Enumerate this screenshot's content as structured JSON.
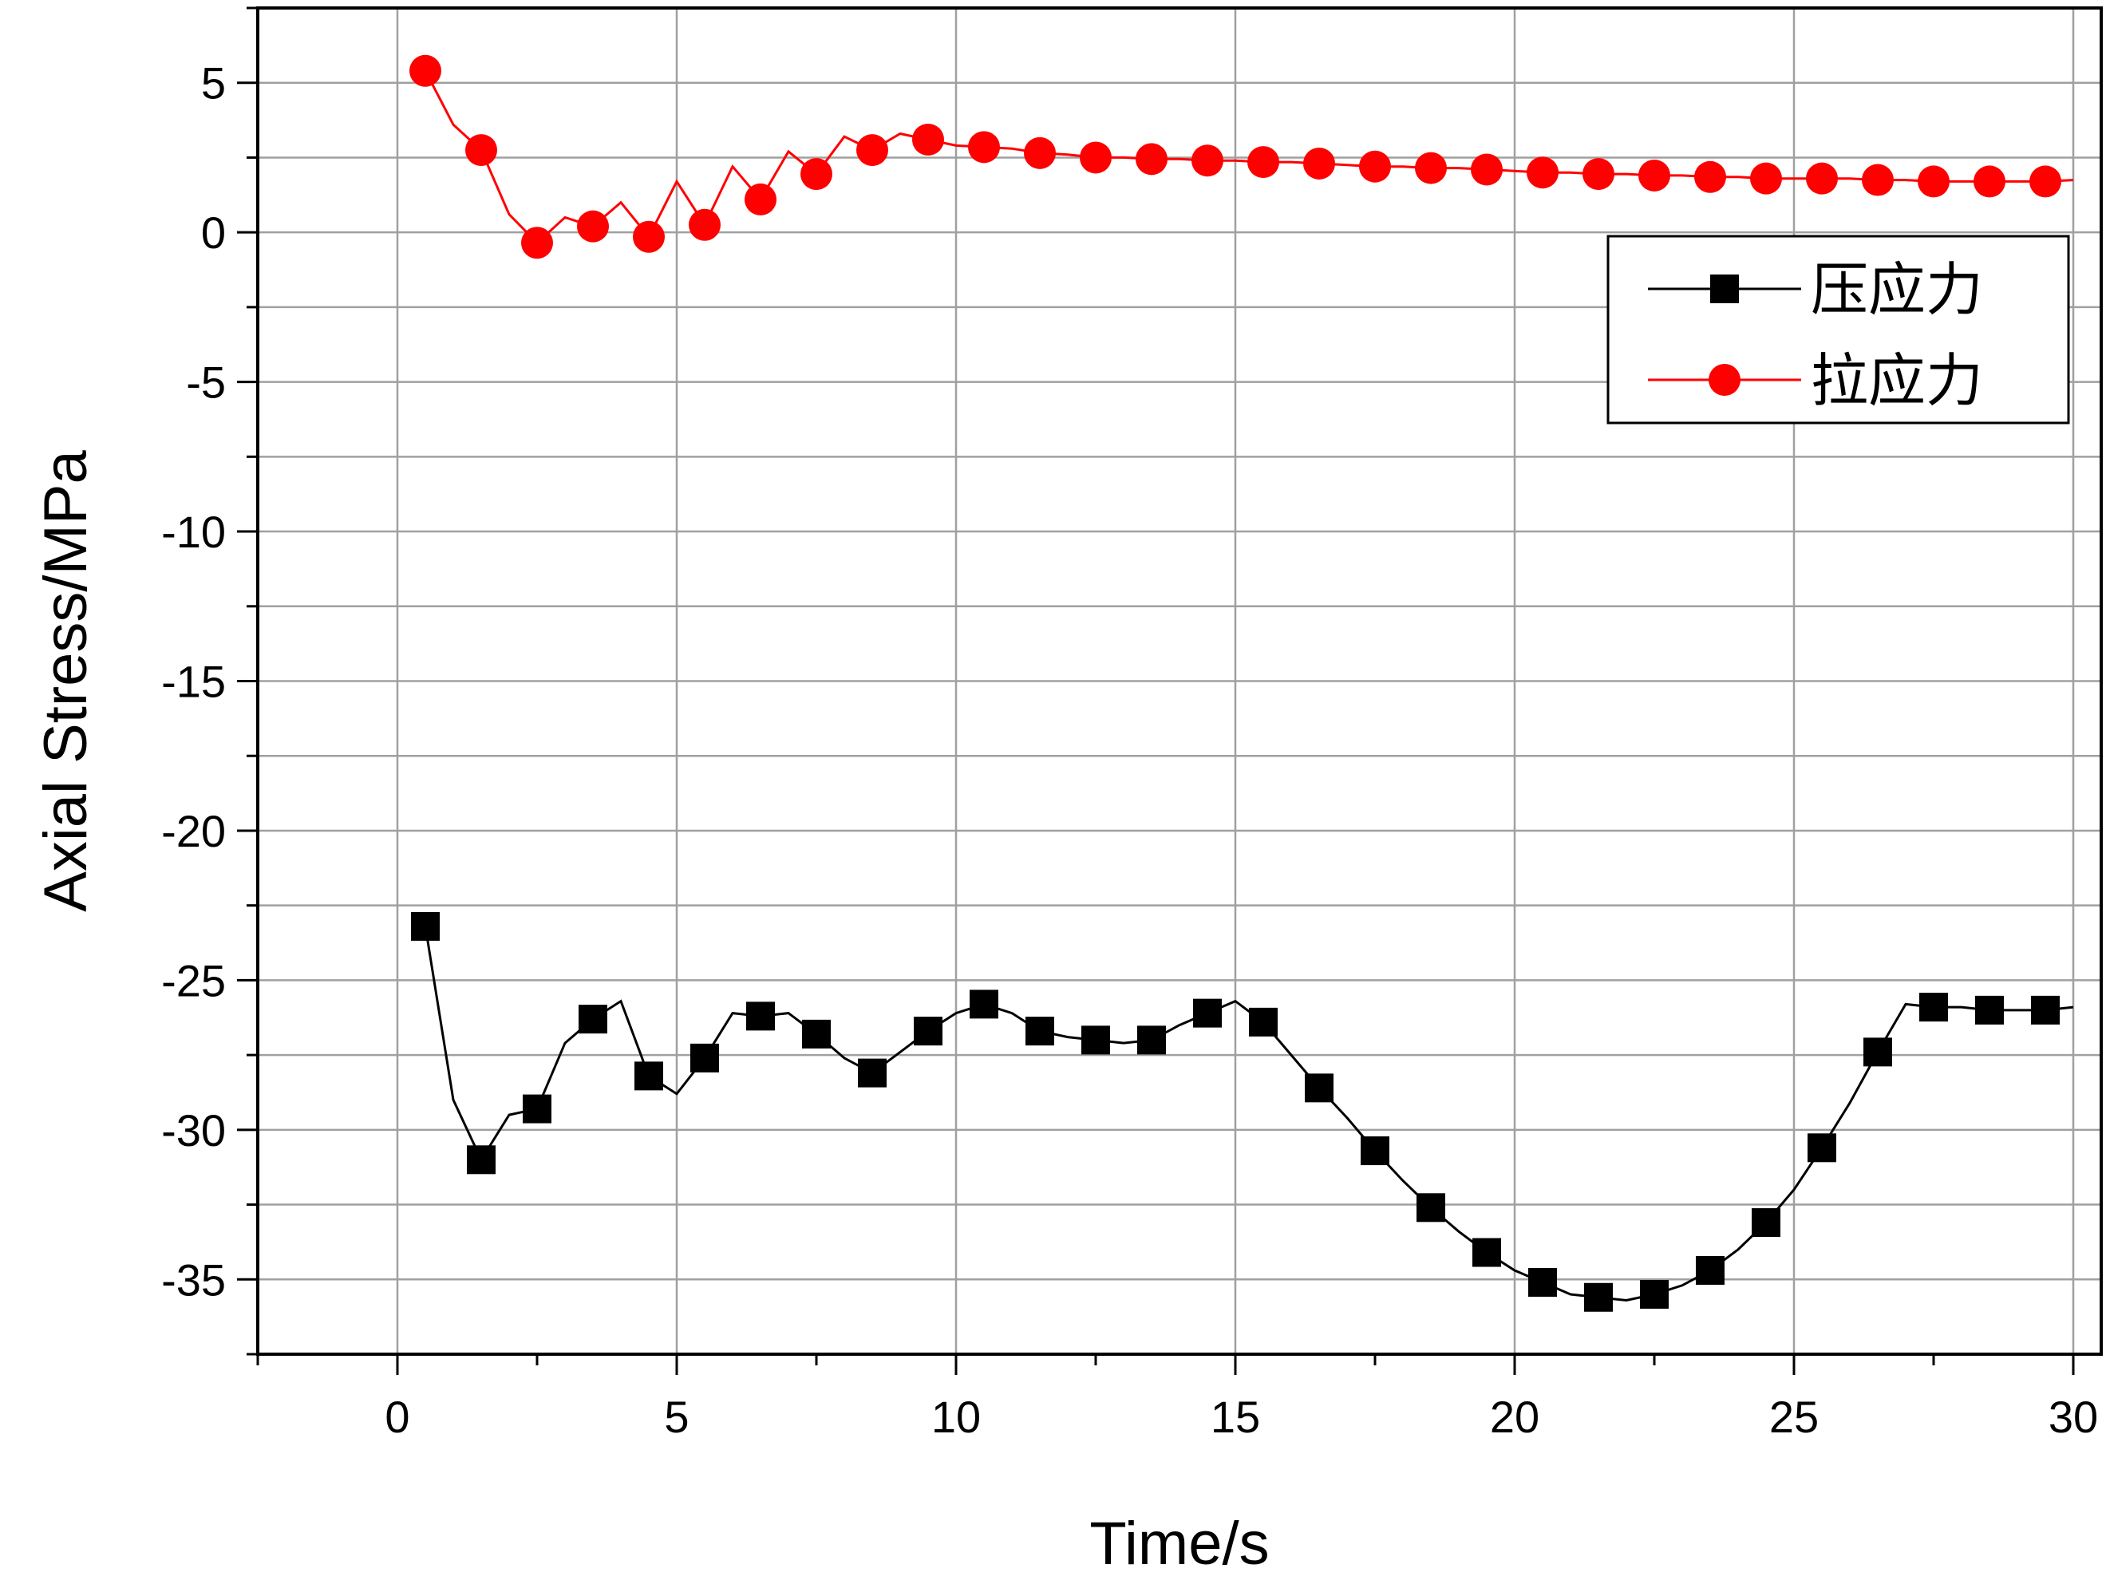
{
  "chart_data": {
    "type": "line",
    "xlabel": "Time/s",
    "ylabel": "Axial Stress/MPa",
    "xlim": [
      -2.5,
      30.5
    ],
    "ylim": [
      -37.5,
      7.5
    ],
    "xticks": [
      0,
      5,
      10,
      15,
      20,
      25,
      30
    ],
    "yticks": [
      5,
      0,
      -5,
      -10,
      -15,
      -20,
      -25,
      -30,
      -35
    ],
    "grid": true,
    "legend_position": "top-right",
    "series": [
      {
        "name": "压应力",
        "color": "#000000",
        "marker": "square",
        "x": [
          0.5,
          1.5,
          2.5,
          3.5,
          4.5,
          5.5,
          6.5,
          7.5,
          8.5,
          9.5,
          10.5,
          11.5,
          12.5,
          13.5,
          14.5,
          15.5,
          16.5,
          17.5,
          18.5,
          19.5,
          20.5,
          21.5,
          22.5,
          23.5,
          24.5,
          25.5,
          26.5,
          27.5,
          28.5,
          29.5
        ],
        "y": [
          -23.2,
          -31.0,
          -29.3,
          -26.3,
          -28.2,
          -27.6,
          -26.2,
          -26.8,
          -28.1,
          -26.7,
          -25.8,
          -26.7,
          -27.0,
          -27.0,
          -26.1,
          -26.4,
          -28.6,
          -30.7,
          -32.6,
          -34.1,
          -35.1,
          -35.6,
          -35.5,
          -34.7,
          -33.1,
          -30.6,
          -27.4,
          -25.9,
          -26.0,
          -26.0
        ],
        "line_x": [
          0.5,
          1.0,
          1.5,
          2.0,
          2.5,
          3.0,
          3.5,
          4.0,
          4.5,
          5.0,
          5.5,
          6.0,
          6.5,
          7.0,
          7.5,
          8.0,
          8.5,
          9.0,
          9.5,
          10.0,
          10.5,
          11.0,
          11.5,
          12.0,
          12.5,
          13.0,
          13.5,
          14.0,
          14.5,
          15.0,
          15.5,
          16.0,
          16.5,
          17.0,
          17.5,
          18.0,
          18.5,
          19.0,
          19.5,
          20.0,
          20.5,
          21.0,
          21.5,
          22.0,
          22.5,
          23.0,
          23.5,
          24.0,
          24.5,
          25.0,
          25.5,
          26.0,
          26.5,
          27.0,
          27.5,
          28.0,
          28.5,
          29.0,
          29.5,
          30.0
        ],
        "line_y": [
          -23.2,
          -29.0,
          -31.0,
          -29.5,
          -29.3,
          -27.1,
          -26.3,
          -25.7,
          -28.2,
          -28.8,
          -27.6,
          -26.1,
          -26.2,
          -26.1,
          -26.8,
          -27.6,
          -28.1,
          -27.4,
          -26.7,
          -26.1,
          -25.8,
          -26.1,
          -26.7,
          -26.9,
          -27.0,
          -27.1,
          -27.0,
          -26.5,
          -26.1,
          -25.7,
          -26.4,
          -27.5,
          -28.6,
          -29.6,
          -30.7,
          -31.7,
          -32.6,
          -33.4,
          -34.1,
          -34.7,
          -35.1,
          -35.5,
          -35.6,
          -35.7,
          -35.5,
          -35.2,
          -34.7,
          -34.0,
          -33.1,
          -32.0,
          -30.6,
          -29.1,
          -27.4,
          -25.8,
          -25.9,
          -25.9,
          -26.0,
          -26.0,
          -26.0,
          -25.9
        ]
      },
      {
        "name": "拉应力",
        "color": "#ff0000",
        "marker": "circle",
        "x": [
          0.5,
          1.5,
          2.5,
          3.5,
          4.5,
          5.5,
          6.5,
          7.5,
          8.5,
          9.5,
          10.5,
          11.5,
          12.5,
          13.5,
          14.5,
          15.5,
          16.5,
          17.5,
          18.5,
          19.5,
          20.5,
          21.5,
          22.5,
          23.5,
          24.5,
          25.5,
          26.5,
          27.5,
          28.5,
          29.5
        ],
        "y": [
          5.4,
          2.75,
          -0.35,
          0.2,
          -0.15,
          0.25,
          1.1,
          1.95,
          2.75,
          3.1,
          2.85,
          2.65,
          2.5,
          2.45,
          2.4,
          2.35,
          2.3,
          2.2,
          2.15,
          2.1,
          2.0,
          1.95,
          1.9,
          1.85,
          1.8,
          1.8,
          1.75,
          1.7,
          1.7,
          1.7
        ],
        "line_x": [
          0.5,
          1.0,
          1.5,
          2.0,
          2.5,
          3.0,
          3.5,
          4.0,
          4.5,
          5.0,
          5.5,
          6.0,
          6.5,
          7.0,
          7.5,
          8.0,
          8.5,
          9.0,
          9.5,
          10.0,
          10.5,
          11.0,
          11.5,
          12.0,
          12.5,
          13.0,
          13.5,
          14.0,
          14.5,
          15.0,
          15.5,
          16.0,
          16.5,
          17.0,
          17.5,
          18.0,
          18.5,
          19.0,
          19.5,
          20.0,
          20.5,
          21.0,
          21.5,
          22.0,
          22.5,
          23.0,
          23.5,
          24.0,
          24.5,
          25.0,
          25.5,
          26.0,
          26.5,
          27.0,
          27.5,
          28.0,
          28.5,
          29.0,
          29.5,
          30.0
        ],
        "line_y": [
          5.4,
          3.6,
          2.75,
          0.6,
          -0.35,
          0.5,
          0.2,
          1.0,
          -0.15,
          1.7,
          0.25,
          2.2,
          1.1,
          2.7,
          1.95,
          3.2,
          2.75,
          3.3,
          3.1,
          2.9,
          2.85,
          2.8,
          2.65,
          2.6,
          2.5,
          2.5,
          2.45,
          2.45,
          2.4,
          2.4,
          2.35,
          2.35,
          2.3,
          2.25,
          2.2,
          2.2,
          2.15,
          2.15,
          2.1,
          2.05,
          2.0,
          2.0,
          1.95,
          1.95,
          1.9,
          1.9,
          1.85,
          1.85,
          1.8,
          1.8,
          1.8,
          1.8,
          1.75,
          1.75,
          1.7,
          1.7,
          1.7,
          1.7,
          1.7,
          1.75
        ]
      }
    ]
  }
}
